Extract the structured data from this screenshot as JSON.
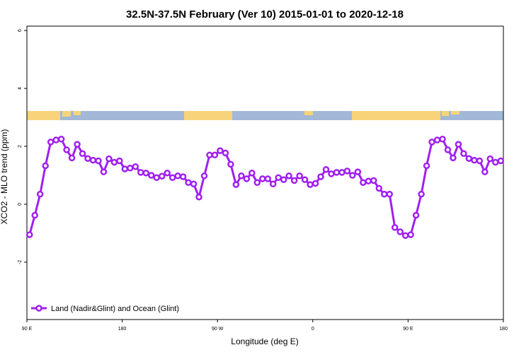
{
  "chart_data": {
    "type": "line",
    "title": "32.5N-37.5N February (Ver 10)   2015-01-01 to 2020-12-18",
    "x_label": "Longitude (deg E)",
    "y_label": "XCO2 - MLO trend (ppm)",
    "xlim": [
      90,
      540
    ],
    "ylim": [
      -3.98,
      6.15
    ],
    "xticks": [
      {
        "value": 90,
        "label": "90 E"
      },
      180,
      {
        "value": 270,
        "label": "90 W"
      },
      {
        "value": 360,
        "label": "0"
      },
      {
        "value": 450,
        "label": "90 E"
      },
      {
        "value": 540,
        "label": "180"
      }
    ],
    "yticks": [
      -2,
      0,
      2,
      4,
      6
    ],
    "legend": "bottom-left",
    "x": [
      92.5,
      97.5,
      102.5,
      107.5,
      112.5,
      117.5,
      122.5,
      127.5,
      132.5,
      137.5,
      142.5,
      147.5,
      152.5,
      157.5,
      162.5,
      167.5,
      172.5,
      177.5,
      182.5,
      187.5,
      192.5,
      197.5,
      202.5,
      207.5,
      212.5,
      217.5,
      222.5,
      227.5,
      232.5,
      237.5,
      242.5,
      247.5,
      252.5,
      257.5,
      262.5,
      267.5,
      272.5,
      277.5,
      282.5,
      287.5,
      292.5,
      297.5,
      302.5,
      307.5,
      312.5,
      317.5,
      322.5,
      327.5,
      332.5,
      337.5,
      342.5,
      347.5,
      352.5,
      357.5,
      362.5,
      367.5,
      372.5,
      377.5,
      382.5,
      387.5,
      392.5,
      397.5,
      402.5,
      407.5,
      412.5,
      417.5,
      422.5,
      427.5,
      432.5,
      437.5,
      442.5,
      447.5,
      452.5,
      457.5,
      462.5,
      467.5,
      472.5,
      477.5,
      482.5,
      487.5,
      492.5,
      497.5,
      502.5,
      507.5,
      512.5,
      517.5,
      522.5,
      527.5,
      532.5,
      537.5
    ],
    "series": [
      {
        "name": "Land (Nadir&Glint) and Ocean (Glint)",
        "color": "#a020f0",
        "values": [
          -1.05,
          -0.38,
          0.35,
          1.33,
          2.15,
          2.22,
          2.25,
          1.88,
          1.6,
          2.07,
          1.75,
          1.58,
          1.52,
          1.5,
          1.12,
          1.57,
          1.45,
          1.5,
          1.22,
          1.25,
          1.3,
          1.1,
          1.08,
          1.0,
          0.92,
          0.97,
          1.08,
          0.92,
          0.98,
          0.95,
          0.75,
          0.7,
          0.25,
          0.98,
          1.7,
          1.7,
          1.85,
          1.77,
          1.38,
          0.68,
          0.98,
          0.88,
          1.08,
          0.75,
          0.88,
          0.88,
          0.7,
          0.92,
          0.85,
          0.98,
          0.82,
          0.98,
          0.85,
          0.68,
          0.72,
          0.95,
          1.2,
          1.05,
          1.1,
          1.1,
          1.15,
          1.0,
          1.12,
          0.75,
          0.8,
          0.82,
          0.55,
          0.35,
          0.35,
          -0.8,
          -0.95,
          -1.08,
          -1.05,
          -0.38,
          0.35,
          1.33,
          2.15,
          2.22,
          2.25,
          1.88,
          1.6,
          2.07,
          1.75,
          1.58,
          1.52,
          1.5,
          1.12,
          1.57,
          1.45,
          1.5
        ]
      }
    ]
  }
}
